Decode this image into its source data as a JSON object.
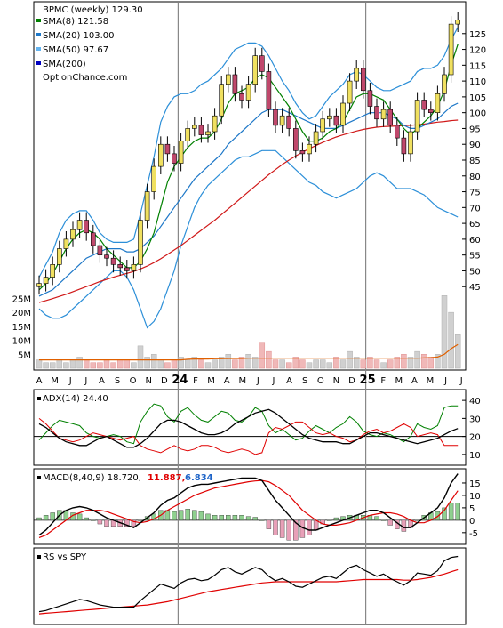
{
  "chart_data": {
    "type": "stock-chart",
    "x_axis": {
      "labels": [
        "A",
        "M",
        "J",
        "J",
        "A",
        "S",
        "O",
        "N",
        "D",
        "24",
        "F",
        "M",
        "A",
        "M",
        "J",
        "J",
        "A",
        "S",
        "O",
        "N",
        "D",
        "25",
        "F",
        "M",
        "A",
        "M",
        "J",
        "J"
      ],
      "year_markers": [
        "24",
        "25"
      ]
    },
    "price_panel": {
      "ticker_label": "BPMC (weekly) 129.30",
      "legend": [
        {
          "label": "SMA(8) 121.58",
          "color": "#008000"
        },
        {
          "label": "SMA(20) 103.00",
          "color": "#1e78c8"
        },
        {
          "label": "SMA(50) 97.67",
          "color": "#64b4f0"
        },
        {
          "label": "SMA(200)",
          "color": "#0000c0"
        },
        {
          "label": "OptionChance.com",
          "color": null
        }
      ],
      "y_ticks": [
        45,
        50,
        55,
        60,
        65,
        70,
        75,
        80,
        85,
        90,
        95,
        100,
        105,
        110,
        115,
        120,
        125
      ],
      "ylim": [
        40,
        130
      ],
      "closes": [
        46,
        48,
        52,
        57,
        60,
        63,
        66,
        62,
        58,
        55,
        54,
        52,
        51,
        50,
        52,
        66,
        75,
        83,
        90,
        87,
        84,
        91,
        95,
        96,
        93,
        94,
        99,
        109,
        112,
        106,
        104,
        109,
        118,
        113,
        101,
        96,
        99,
        95,
        88,
        87,
        90,
        94,
        98,
        99,
        96,
        103,
        110,
        114,
        107,
        102,
        98,
        101,
        96,
        92,
        87,
        94,
        104,
        101,
        100,
        106,
        112,
        128,
        129.3
      ],
      "sma8": [
        44,
        46,
        49,
        53,
        57,
        60,
        62,
        63,
        62,
        60,
        57,
        55,
        53,
        51,
        51,
        53,
        57,
        62,
        70,
        78,
        83,
        86,
        89,
        91,
        92,
        92,
        94,
        98,
        103,
        106,
        107,
        108,
        111,
        112,
        111,
        108,
        105,
        102,
        98,
        94,
        91,
        91,
        92,
        94,
        95,
        97,
        101,
        105,
        106,
        106,
        105,
        104,
        101,
        98,
        95,
        93,
        95,
        97,
        99,
        102,
        107,
        115,
        121.58
      ],
      "sma20": [
        42,
        43,
        44,
        46,
        48,
        50,
        52,
        54,
        55,
        56,
        57,
        57,
        57,
        56,
        56,
        57,
        59,
        61,
        64,
        67,
        70,
        73,
        76,
        79,
        81,
        83,
        85,
        87,
        90,
        92,
        94,
        96,
        98,
        100,
        101,
        101,
        101,
        100,
        99,
        98,
        97,
        96,
        95,
        95,
        95,
        96,
        97,
        98,
        99,
        100,
        100,
        100,
        99,
        98,
        96,
        95,
        95,
        96,
        97,
        98,
        100,
        102,
        103.0
      ],
      "sma50": [
        40,
        40.6,
        41.2,
        41.9,
        42.6,
        43.4,
        44.2,
        45,
        45.8,
        46.6,
        47.3,
        48,
        48.6,
        49.2,
        49.8,
        50.6,
        51.5,
        52.6,
        53.8,
        55.2,
        56.6,
        58,
        59.6,
        61.2,
        62.8,
        64.4,
        66,
        67.8,
        69.6,
        71.4,
        73.2,
        75,
        76.8,
        78.6,
        80.4,
        82,
        83.6,
        85,
        86.3,
        87.5,
        88.6,
        89.6,
        90.6,
        91.5,
        92.3,
        93,
        93.6,
        94.2,
        94.7,
        95.1,
        95.4,
        95.6,
        95.7,
        95.8,
        95.9,
        96,
        96.2,
        96.4,
        96.7,
        97,
        97.2,
        97.5,
        97.67
      ],
      "bb_upper": [
        48,
        52,
        56,
        62,
        66,
        68,
        69,
        69,
        66,
        62,
        60,
        59,
        59,
        59,
        60,
        68,
        77,
        86,
        97,
        102,
        105,
        106,
        106,
        107,
        109,
        110,
        112,
        114,
        117,
        120,
        121,
        122,
        122,
        121,
        118,
        114,
        110,
        107,
        103,
        100,
        98,
        99,
        102,
        105,
        107,
        109,
        112,
        113,
        112,
        110,
        108,
        107,
        107,
        108,
        109,
        110,
        113,
        114,
        114,
        115,
        118,
        123,
        127
      ],
      "bb_lower": [
        38,
        36,
        35,
        35,
        36,
        38,
        40,
        42,
        44,
        46,
        48,
        50,
        50,
        48,
        44,
        38,
        32,
        34,
        38,
        44,
        50,
        58,
        64,
        70,
        74,
        77,
        79,
        81,
        83,
        85,
        86,
        86,
        87,
        88,
        88,
        88,
        86,
        84,
        82,
        80,
        78,
        77,
        75,
        74,
        73,
        74,
        75,
        76,
        78,
        80,
        81,
        80,
        78,
        76,
        76,
        76,
        75,
        74,
        72,
        70,
        69,
        68,
        67
      ],
      "volume_ticks": [
        "25M",
        "20M",
        "15M",
        "10M",
        "5M"
      ],
      "volume_max_m": 28,
      "volume_m": [
        3,
        2,
        2,
        3,
        2,
        3,
        4,
        3,
        2,
        2,
        3,
        2,
        3,
        3,
        2,
        8,
        4,
        5,
        3,
        2,
        3,
        4,
        3,
        4,
        3,
        2,
        3,
        4,
        5,
        3,
        4,
        5,
        4,
        9,
        6,
        3,
        3,
        2,
        4,
        3,
        2,
        3,
        3,
        2,
        4,
        3,
        6,
        4,
        3,
        4,
        3,
        2,
        3,
        4,
        5,
        4,
        6,
        5,
        4,
        5,
        26,
        20,
        12
      ],
      "volume_avg_m": [
        3,
        3,
        3,
        3,
        3,
        3,
        3,
        3,
        3,
        3,
        3,
        3,
        3,
        3,
        3,
        3,
        3,
        3,
        3,
        3,
        3,
        3,
        3.2,
        3.3,
        3.3,
        3.3,
        3.4,
        3.4,
        3.5,
        3.5,
        3.5,
        3.6,
        3.6,
        3.6,
        3.6,
        3.6,
        3.6,
        3.6,
        3.6,
        3.6,
        3.6,
        3.6,
        3.6,
        3.6,
        3.6,
        3.6,
        3.6,
        3.6,
        3.6,
        3.6,
        3.6,
        3.6,
        3.6,
        3.6,
        3.6,
        3.6,
        3.6,
        3.7,
        3.8,
        4,
        5,
        7,
        8.5
      ]
    },
    "adx_panel": {
      "label": "ADX(14) 24.40",
      "y_ticks": [
        10,
        20,
        30,
        40
      ],
      "ylim": [
        5,
        45
      ],
      "adx": [
        27,
        25,
        22,
        19,
        17,
        16,
        15,
        15,
        17,
        19,
        20,
        18,
        16,
        14,
        14,
        16,
        19,
        23,
        27,
        29,
        29,
        28,
        26,
        24,
        22,
        21,
        21,
        22,
        24,
        27,
        29,
        31,
        33,
        34,
        35,
        33,
        30,
        27,
        24,
        21,
        19,
        18,
        17,
        17,
        17,
        16,
        16,
        18,
        20,
        22,
        22,
        21,
        20,
        19,
        18,
        17,
        16,
        17,
        18,
        19,
        21,
        23,
        24.4
      ],
      "plus_di": [
        18,
        22,
        26,
        29,
        28,
        27,
        26,
        22,
        20,
        19,
        20,
        21,
        20,
        17,
        16,
        28,
        34,
        38,
        37,
        31,
        28,
        34,
        36,
        32,
        29,
        28,
        31,
        34,
        33,
        29,
        28,
        31,
        36,
        34,
        26,
        22,
        24,
        21,
        18,
        19,
        23,
        26,
        24,
        22,
        25,
        27,
        31,
        28,
        23,
        21,
        20,
        22,
        21,
        19,
        17,
        20,
        27,
        25,
        24,
        26,
        36,
        37,
        37
      ],
      "minus_di": [
        30,
        27,
        23,
        19,
        18,
        17,
        18,
        20,
        22,
        21,
        20,
        19,
        18,
        19,
        20,
        15,
        13,
        12,
        11,
        13,
        15,
        13,
        12,
        13,
        15,
        15,
        14,
        12,
        11,
        12,
        13,
        12,
        10,
        11,
        22,
        25,
        24,
        26,
        28,
        28,
        25,
        22,
        21,
        22,
        20,
        19,
        17,
        18,
        21,
        23,
        24,
        22,
        23,
        25,
        27,
        25,
        20,
        21,
        22,
        21,
        15,
        15,
        15
      ]
    },
    "macd_panel": {
      "label": "MACD(8,40,9) 18.720,",
      "signal_label": "11.887,",
      "hist_label": "6.834",
      "y_ticks": [
        -5,
        0,
        5,
        10,
        15
      ],
      "ylim": [
        -9,
        20
      ],
      "macd": [
        -6,
        -4,
        -1,
        2,
        4,
        5,
        5.5,
        5,
        4,
        2.5,
        1,
        0,
        -1,
        -2,
        -3,
        -1,
        1,
        3,
        6,
        8,
        9,
        11,
        13,
        14,
        14.5,
        14.5,
        15,
        15.5,
        16,
        16.5,
        17,
        17,
        17,
        16,
        12,
        8,
        5,
        2,
        -1,
        -3,
        -4,
        -4,
        -3,
        -2,
        -1,
        0,
        1,
        2,
        3,
        4,
        4,
        3,
        1,
        -1,
        -3,
        -3,
        -1,
        1,
        3,
        5,
        9,
        15,
        18.72
      ],
      "signal": [
        -7,
        -6,
        -4,
        -2,
        0,
        2,
        3,
        4,
        4,
        4,
        3.5,
        2.5,
        1.5,
        0.5,
        -0.5,
        -1,
        -0.5,
        0.5,
        2,
        4,
        5.5,
        7,
        8.5,
        10,
        11,
        12,
        13,
        13.5,
        14,
        14.5,
        15,
        15.5,
        15.8,
        16,
        15.5,
        14,
        12,
        10,
        7,
        4,
        2,
        0,
        -1.5,
        -2,
        -2,
        -1.5,
        -1,
        0,
        1,
        2,
        2.5,
        3,
        3,
        2.5,
        1.5,
        0,
        -1,
        -1,
        0,
        1.5,
        4,
        8,
        11.887
      ]
    },
    "rs_panel": {
      "label": "RS vs SPY",
      "rs": [
        10,
        11,
        13,
        15,
        17,
        19,
        21,
        20,
        18,
        16,
        15,
        14,
        14,
        14,
        14,
        20,
        25,
        30,
        35,
        33,
        31,
        36,
        39,
        40,
        38,
        39,
        43,
        48,
        50,
        46,
        44,
        47,
        50,
        48,
        42,
        38,
        40,
        37,
        33,
        32,
        35,
        38,
        41,
        42,
        40,
        45,
        50,
        52,
        48,
        45,
        42,
        44,
        40,
        37,
        34,
        38,
        45,
        44,
        43,
        47,
        56,
        59,
        60
      ],
      "rs_ma": [
        8,
        8.5,
        9,
        9.5,
        10,
        10.5,
        11,
        11.5,
        12,
        12.5,
        13,
        13.5,
        14,
        14.5,
        15,
        15.5,
        16,
        17,
        18,
        19,
        20.5,
        22,
        23.5,
        25,
        26.5,
        28,
        29,
        30,
        31,
        32,
        33,
        34,
        35,
        36,
        36.5,
        37,
        37,
        37,
        37,
        37,
        37,
        37,
        37,
        37,
        37,
        37.5,
        38,
        38.5,
        39,
        39,
        39,
        39,
        39,
        39,
        38.5,
        38.5,
        39,
        40,
        41,
        42.5,
        44,
        46,
        48
      ]
    }
  }
}
